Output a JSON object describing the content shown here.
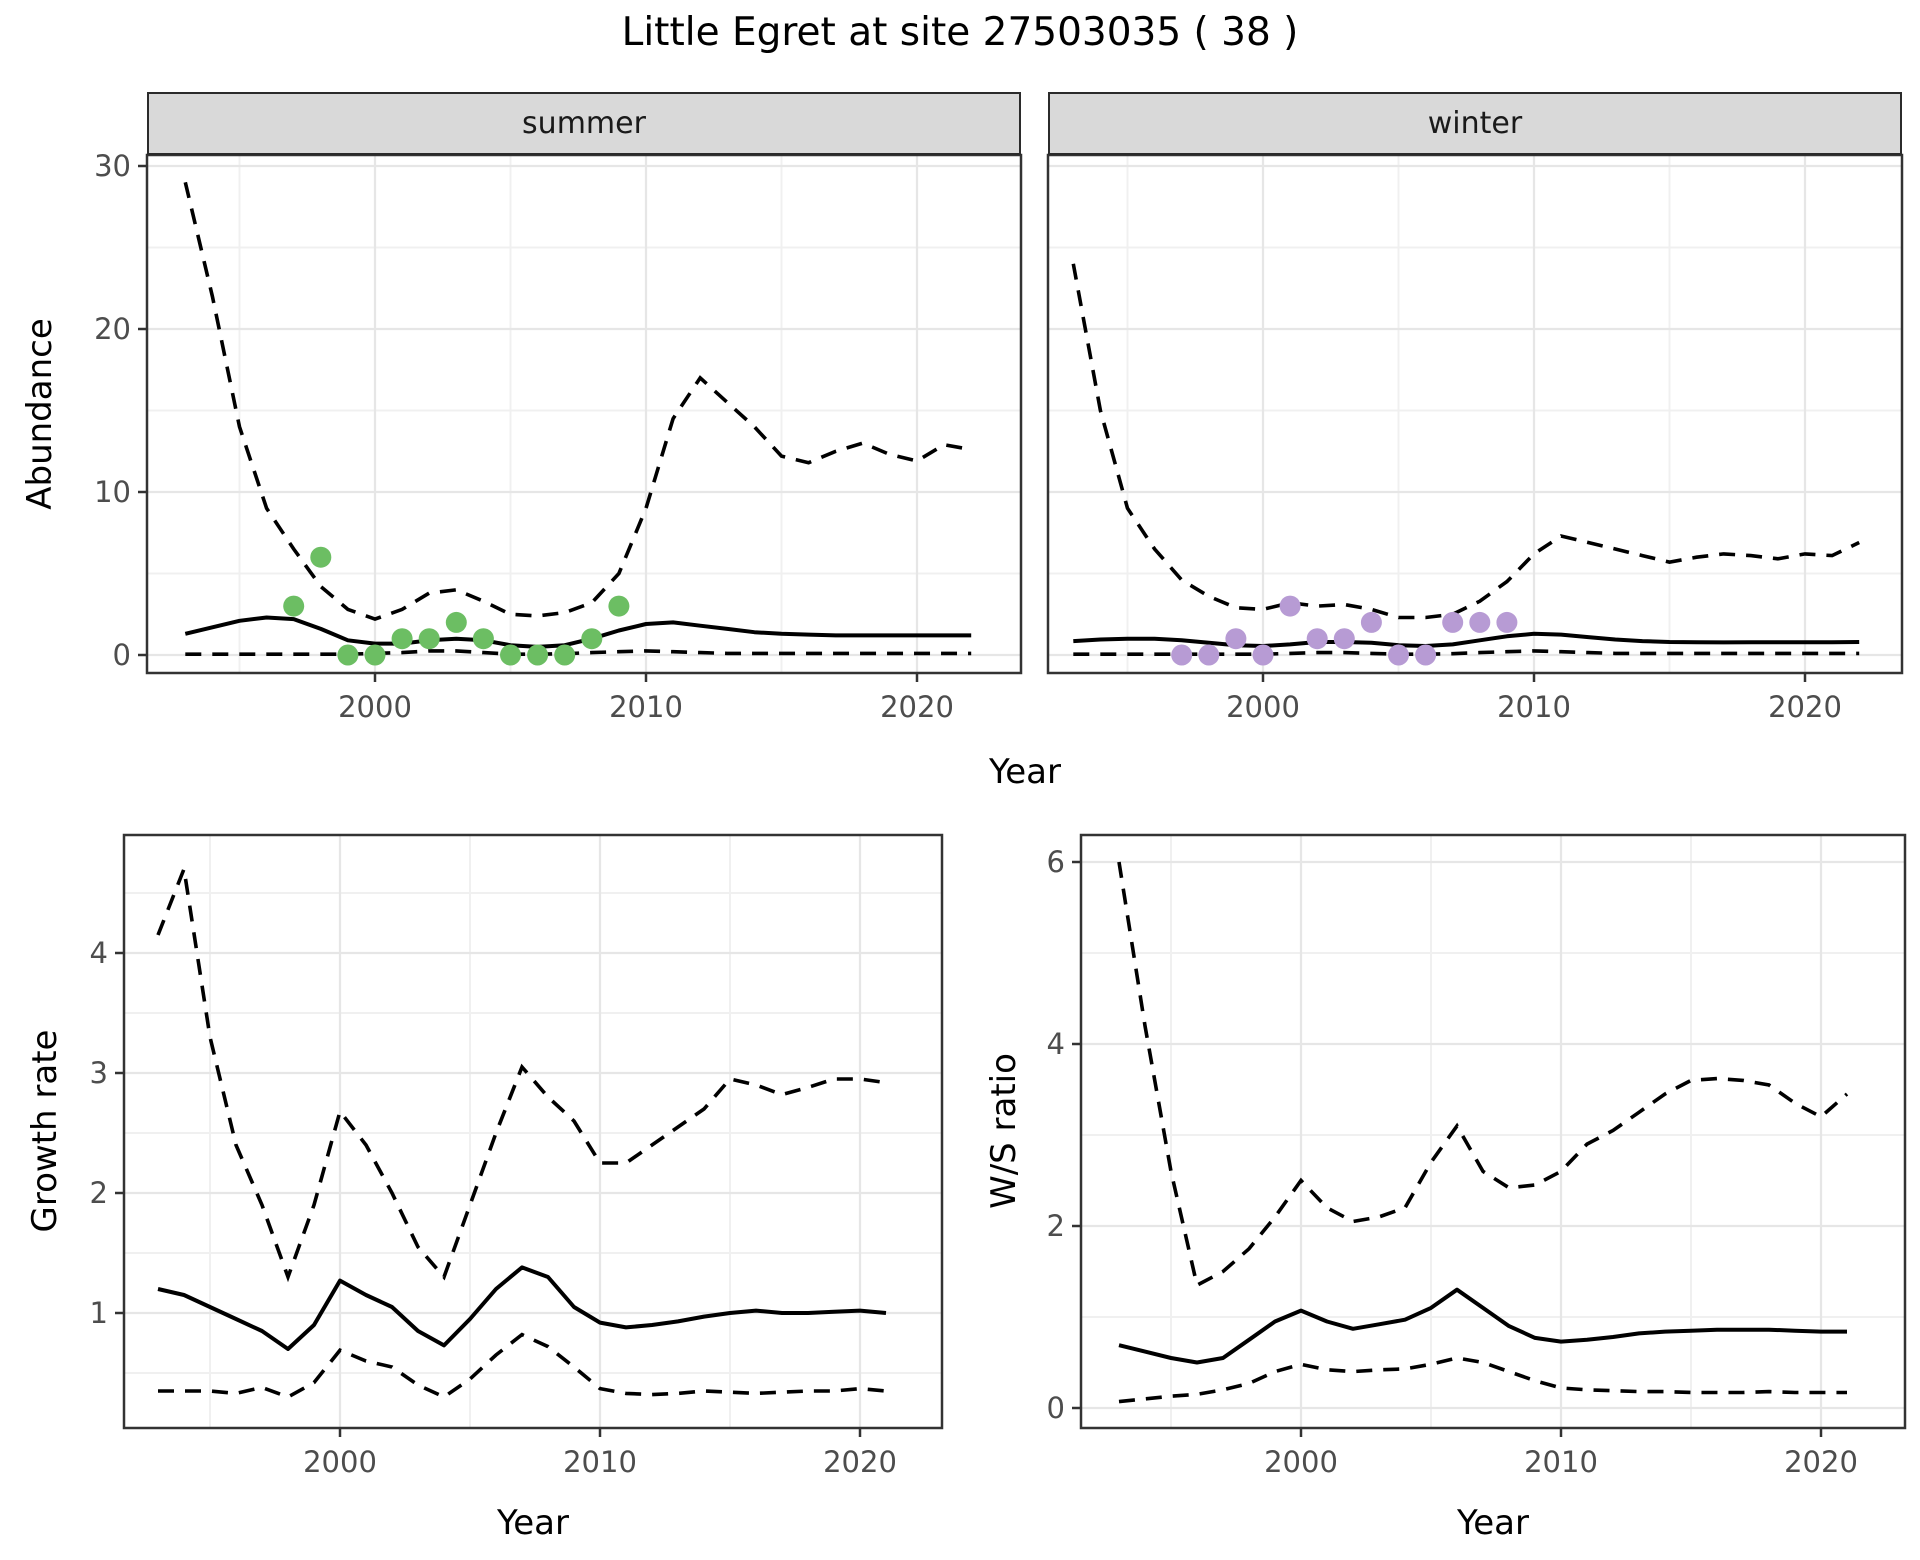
{
  "title": "Little Egret at site 27503035 ( 38 )",
  "colors": {
    "summer_points": "#6cbe63",
    "winter_points": "#b79bd4",
    "fit_line": "#000000",
    "ci_line": "#000000",
    "strip_fill": "#d9d9d9",
    "grid_major": "#e6e6e6",
    "grid_minor": "#f0f0f0",
    "panel_border": "#333333",
    "tick_text": "#4d4d4d"
  },
  "chart_data": [
    {
      "id": "abundance",
      "type": "line",
      "xlabel": "Year",
      "ylabel": "Abundance",
      "yticks": [
        0,
        10,
        20,
        30
      ],
      "xticks": [
        2000,
        2010,
        2020
      ],
      "ylim": [
        -1,
        31
      ],
      "xlim": [
        1991.6,
        2023.8
      ],
      "grid": true,
      "legend": "none",
      "ci_style": "dashed",
      "facets": [
        {
          "label": "summer",
          "point_color": "#6cbe63",
          "years": [
            1993,
            1994,
            1995,
            1996,
            1997,
            1998,
            1999,
            2000,
            2001,
            2002,
            2003,
            2004,
            2005,
            2006,
            2007,
            2008,
            2009,
            2010,
            2011,
            2012,
            2013,
            2014,
            2015,
            2016,
            2017,
            2018,
            2019,
            2020,
            2021,
            2022
          ],
          "fit": [
            1.3,
            1.7,
            2.1,
            2.3,
            2.2,
            1.6,
            0.9,
            0.7,
            0.7,
            0.9,
            1.0,
            0.9,
            0.6,
            0.5,
            0.6,
            1.0,
            1.5,
            1.9,
            2.0,
            1.8,
            1.6,
            1.4,
            1.3,
            1.25,
            1.2,
            1.2,
            1.2,
            1.2,
            1.2,
            1.2
          ],
          "upper_ci": [
            29,
            22,
            14,
            9,
            6.5,
            4.2,
            2.8,
            2.2,
            2.8,
            3.8,
            4.0,
            3.3,
            2.5,
            2.4,
            2.6,
            3.2,
            5.0,
            9.0,
            14.5,
            17.0,
            15.5,
            14.0,
            12.2,
            11.8,
            12.5,
            13.0,
            12.3,
            11.9,
            12.9,
            12.6
          ],
          "lower_ci": [
            0.05,
            0.05,
            0.05,
            0.05,
            0.05,
            0.05,
            0.05,
            0.1,
            0.15,
            0.25,
            0.25,
            0.15,
            0.05,
            0.05,
            0.08,
            0.15,
            0.2,
            0.25,
            0.2,
            0.15,
            0.1,
            0.1,
            0.1,
            0.1,
            0.1,
            0.1,
            0.1,
            0.1,
            0.1,
            0.1
          ],
          "obs_years": [
            1997,
            1998,
            1999,
            2000,
            2001,
            2002,
            2003,
            2004,
            2005,
            2006,
            2007,
            2008,
            2009
          ],
          "obs_values": [
            3,
            6,
            0,
            0,
            1,
            1,
            2,
            1,
            0,
            0,
            0,
            1,
            3
          ]
        },
        {
          "label": "winter",
          "point_color": "#b79bd4",
          "years": [
            1993,
            1994,
            1995,
            1996,
            1997,
            1998,
            1999,
            2000,
            2001,
            2002,
            2003,
            2004,
            2005,
            2006,
            2007,
            2008,
            2009,
            2010,
            2011,
            2012,
            2013,
            2014,
            2015,
            2016,
            2017,
            2018,
            2019,
            2020,
            2021,
            2022
          ],
          "fit": [
            0.85,
            0.95,
            1.0,
            1.0,
            0.9,
            0.75,
            0.6,
            0.55,
            0.65,
            0.8,
            0.8,
            0.75,
            0.6,
            0.55,
            0.65,
            0.9,
            1.15,
            1.3,
            1.25,
            1.1,
            0.95,
            0.85,
            0.8,
            0.78,
            0.77,
            0.78,
            0.78,
            0.78,
            0.78,
            0.8
          ],
          "upper_ci": [
            24,
            15,
            9,
            6.5,
            4.6,
            3.6,
            2.9,
            2.8,
            3.2,
            3.0,
            3.1,
            2.8,
            2.3,
            2.3,
            2.5,
            3.3,
            4.5,
            6.2,
            7.3,
            6.9,
            6.5,
            6.1,
            5.7,
            6.0,
            6.2,
            6.1,
            5.9,
            6.2,
            6.1,
            6.9
          ],
          "lower_ci": [
            0.05,
            0.05,
            0.05,
            0.05,
            0.05,
            0.05,
            0.05,
            0.05,
            0.1,
            0.15,
            0.15,
            0.1,
            0.05,
            0.05,
            0.08,
            0.15,
            0.2,
            0.25,
            0.2,
            0.15,
            0.1,
            0.1,
            0.1,
            0.1,
            0.1,
            0.1,
            0.1,
            0.1,
            0.1,
            0.1
          ],
          "obs_years": [
            1997,
            1998,
            1999,
            2000,
            2001,
            2002,
            2003,
            2004,
            2005,
            2006,
            2007,
            2008,
            2009
          ],
          "obs_values": [
            0,
            0,
            1,
            0,
            3,
            1,
            1,
            2,
            0,
            0,
            2,
            2,
            2
          ]
        }
      ]
    },
    {
      "id": "growth_rate",
      "type": "line",
      "xlabel": "Year",
      "ylabel": "Growth rate",
      "yticks": [
        1,
        2,
        3,
        4
      ],
      "xticks": [
        2000,
        2010,
        2020
      ],
      "ylim": [
        0.2,
        4.9
      ],
      "xlim": [
        1991.7,
        2023.1
      ],
      "grid": true,
      "ci_style": "dashed",
      "years": [
        1993,
        1994,
        1995,
        1996,
        1997,
        1998,
        1999,
        2000,
        2001,
        2002,
        2003,
        2004,
        2005,
        2006,
        2007,
        2008,
        2009,
        2010,
        2011,
        2012,
        2013,
        2014,
        2015,
        2016,
        2017,
        2018,
        2019,
        2020,
        2021
      ],
      "fit": [
        1.2,
        1.15,
        1.05,
        0.95,
        0.85,
        0.7,
        0.9,
        1.27,
        1.15,
        1.05,
        0.85,
        0.73,
        0.95,
        1.2,
        1.38,
        1.3,
        1.05,
        0.92,
        0.88,
        0.9,
        0.93,
        0.97,
        1.0,
        1.02,
        1.0,
        1.0,
        1.01,
        1.02,
        1.0
      ],
      "upper_ci": [
        4.15,
        4.7,
        3.3,
        2.4,
        1.9,
        1.3,
        1.9,
        2.68,
        2.4,
        2.0,
        1.55,
        1.3,
        1.9,
        2.5,
        3.05,
        2.8,
        2.6,
        2.25,
        2.25,
        2.4,
        2.55,
        2.7,
        2.95,
        2.9,
        2.82,
        2.88,
        2.95,
        2.95,
        2.92
      ],
      "lower_ci": [
        0.35,
        0.35,
        0.35,
        0.33,
        0.38,
        0.3,
        0.42,
        0.69,
        0.6,
        0.55,
        0.4,
        0.3,
        0.45,
        0.65,
        0.82,
        0.72,
        0.55,
        0.37,
        0.33,
        0.32,
        0.33,
        0.35,
        0.34,
        0.33,
        0.34,
        0.35,
        0.35,
        0.37,
        0.35
      ]
    },
    {
      "id": "ws_ratio",
      "type": "line",
      "xlabel": "Year",
      "ylabel": "W/S ratio",
      "yticks": [
        0,
        2,
        4,
        6
      ],
      "xticks": [
        2000,
        2010,
        2020
      ],
      "ylim": [
        -0.3,
        6.3
      ],
      "xlim": [
        1991.5,
        2023.2
      ],
      "grid": true,
      "ci_style": "dashed",
      "years": [
        1993,
        1994,
        1995,
        1996,
        1997,
        1998,
        1999,
        2000,
        2001,
        2002,
        2003,
        2004,
        2005,
        2006,
        2007,
        2008,
        2009,
        2010,
        2011,
        2012,
        2013,
        2014,
        2015,
        2016,
        2017,
        2018,
        2019,
        2020,
        2021
      ],
      "fit": [
        0.69,
        0.62,
        0.55,
        0.5,
        0.55,
        0.75,
        0.95,
        1.07,
        0.95,
        0.87,
        0.92,
        0.97,
        1.1,
        1.3,
        1.1,
        0.9,
        0.77,
        0.73,
        0.75,
        0.78,
        0.82,
        0.84,
        0.85,
        0.86,
        0.86,
        0.86,
        0.85,
        0.84,
        0.84
      ],
      "upper_ci": [
        6.0,
        4.2,
        2.6,
        1.35,
        1.5,
        1.75,
        2.1,
        2.5,
        2.2,
        2.05,
        2.1,
        2.2,
        2.7,
        3.1,
        2.6,
        2.42,
        2.45,
        2.6,
        2.9,
        3.05,
        3.25,
        3.45,
        3.6,
        3.62,
        3.6,
        3.55,
        3.35,
        3.2,
        3.45
      ],
      "lower_ci": [
        0.07,
        0.1,
        0.13,
        0.15,
        0.2,
        0.27,
        0.4,
        0.48,
        0.42,
        0.4,
        0.42,
        0.43,
        0.48,
        0.55,
        0.5,
        0.4,
        0.3,
        0.22,
        0.2,
        0.19,
        0.18,
        0.18,
        0.17,
        0.17,
        0.17,
        0.18,
        0.17,
        0.17,
        0.17
      ]
    }
  ]
}
